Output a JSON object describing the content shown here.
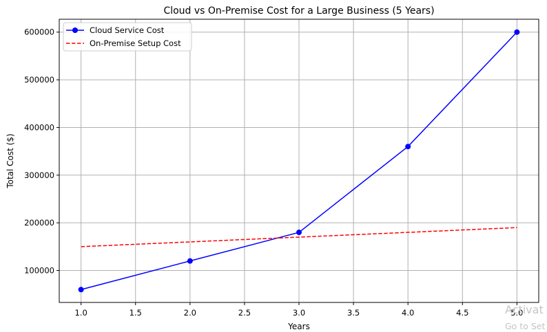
{
  "chart_data": {
    "type": "line",
    "title": "Cloud vs On-Premise Cost for a Large Business (5 Years)",
    "xlabel": "Years",
    "ylabel": "Total Cost ($)",
    "x": [
      1,
      2,
      3,
      4,
      5
    ],
    "xlim": [
      0.8,
      5.2
    ],
    "ylim": [
      33000,
      627000
    ],
    "xticks": [
      1.0,
      1.5,
      2.0,
      2.5,
      3.0,
      3.5,
      4.0,
      4.5,
      5.0
    ],
    "xtick_labels": [
      "1.0",
      "1.5",
      "2.0",
      "2.5",
      "3.0",
      "3.5",
      "4.0",
      "4.5",
      "5.0"
    ],
    "yticks": [
      100000,
      200000,
      300000,
      400000,
      500000,
      600000
    ],
    "ytick_labels": [
      "100000",
      "200000",
      "300000",
      "400000",
      "500000",
      "600000"
    ],
    "grid": true,
    "legend_position": "top-left",
    "series": [
      {
        "name": "Cloud Service Cost",
        "values": [
          60000,
          120000,
          180000,
          360000,
          600000
        ],
        "color": "#0000ff",
        "line_style": "solid",
        "marker": "circle"
      },
      {
        "name": "On-Premise Setup Cost",
        "values": [
          150000,
          160000,
          170000,
          180000,
          190000
        ],
        "color": "#ff0000",
        "line_style": "dashed",
        "marker": "none"
      }
    ]
  },
  "watermark": {
    "line1": "Activat",
    "line2": "Go to Set"
  }
}
